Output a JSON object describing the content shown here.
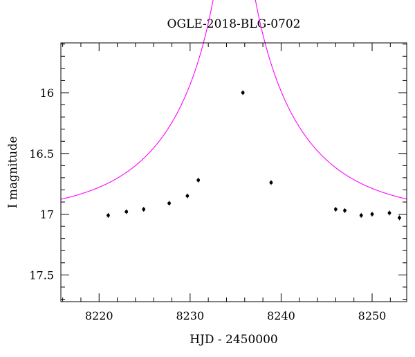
{
  "chart_data": {
    "type": "scatter",
    "title": "OGLE-2018-BLG-0702",
    "xlabel": "HJD - 2450000",
    "ylabel": "I magnitude",
    "xlim": [
      8215.8,
      8253.8
    ],
    "ylim": [
      17.72,
      15.59
    ],
    "y_inverted": true,
    "x_ticks": [
      8220,
      8230,
      8240,
      8250
    ],
    "x_tick_labels": [
      "8220",
      "8230",
      "8240",
      "8250"
    ],
    "y_ticks": [
      16,
      16.5,
      17,
      17.5
    ],
    "y_tick_labels": [
      "16",
      "16.5",
      "17",
      "17.5"
    ],
    "grid": false,
    "series": [
      {
        "kind": "points",
        "color": "#000000",
        "x": [
          8221.0,
          8223.0,
          8224.9,
          8227.7,
          8229.7,
          8230.9,
          8235.8,
          8238.9,
          8246.0,
          8247.0,
          8248.8,
          8250.0,
          8251.9,
          8253.0
        ],
        "y": [
          17.01,
          16.98,
          16.96,
          16.91,
          16.85,
          16.72,
          16.0,
          16.74,
          16.96,
          16.97,
          17.01,
          17.0,
          16.99,
          17.03
        ]
      },
      {
        "kind": "model-curve",
        "color": "#ff00ff",
        "model": {
          "t0": 8234.85,
          "u0": 0.0725,
          "tE": 12.6,
          "base_mag": 17.01
        }
      }
    ]
  }
}
